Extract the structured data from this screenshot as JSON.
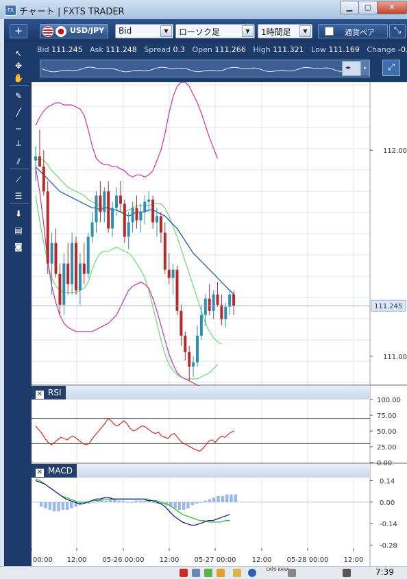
{
  "window": {
    "title": "チャート | FXTS TRADER",
    "icon_label": "FX",
    "min_glyph": "▁",
    "max_glyph": "▢",
    "close_glyph": "✕"
  },
  "toolbar": {
    "add_label": "+",
    "symbol": "USD/JPY",
    "price_type": "Bid",
    "chart_type": "ローソク足",
    "timeframe": "1時間足",
    "compare_label": "通貨ペア",
    "dropdown_glyph": "▼",
    "expand_glyph": "⤡"
  },
  "quote": {
    "bid_label": "Bid",
    "bid": "111.245",
    "ask_label": "Ask",
    "ask": "111.248",
    "spread_label": "Spread",
    "spread": "0.3",
    "open_label": "Open",
    "open": "111.266",
    "high_label": "High",
    "high": "111.321",
    "low_label": "Low",
    "low": "111.169",
    "change_label": "Change",
    "change": "-0."
  },
  "navigator": {
    "arrow_glyph": "▸",
    "thumb_glyph": "◂▸",
    "zoom_glyph": "⤢"
  },
  "left_tools": [
    {
      "name": "pointer-tool-icon",
      "glyph": "↖"
    },
    {
      "name": "crosshair-tool-icon",
      "glyph": "✥"
    },
    {
      "name": "hand-tool-icon",
      "glyph": "✋"
    },
    {
      "name": "draw-tool-icon",
      "glyph": "✎"
    },
    {
      "name": "trendline-tool-icon",
      "glyph": "╱"
    },
    {
      "name": "hline-tool-icon",
      "glyph": "─"
    },
    {
      "name": "vline-tool-icon",
      "glyph": "┴"
    },
    {
      "name": "channel-tool-icon",
      "glyph": "⫽"
    },
    {
      "name": "fan-tool-icon",
      "glyph": "⟋"
    },
    {
      "name": "fibonacci-tool-icon",
      "glyph": "☰"
    },
    {
      "name": "download-icon",
      "glyph": "⬇"
    },
    {
      "name": "list-icon",
      "glyph": "▤"
    },
    {
      "name": "camera-icon",
      "glyph": "◙"
    }
  ],
  "chart_data": [
    {
      "type": "candlestick",
      "symbol": "USD/JPY",
      "timeframe": "1時間足",
      "x_tick_labels": [
        "00:00",
        "12:00",
        "05-26 00:00",
        "12:00",
        "05-27 00:00",
        "12:00",
        "05-28 00:00",
        "12:00"
      ],
      "y_tick_labels": [
        "112.000",
        "111.000"
      ],
      "y_ticks": [
        112.0,
        111.0
      ],
      "ylim": [
        110.88,
        112.33
      ],
      "current_price_label": "111.245",
      "current_price": 111.245,
      "candles": [
        [
          111.95,
          112.02,
          111.85,
          111.97
        ],
        [
          111.97,
          112.1,
          111.92,
          111.92
        ],
        [
          111.92,
          112.0,
          111.78,
          111.8
        ],
        [
          111.8,
          111.85,
          111.4,
          111.45
        ],
        [
          111.45,
          111.6,
          111.3,
          111.55
        ],
        [
          111.55,
          111.62,
          111.38,
          111.4
        ],
        [
          111.4,
          111.45,
          111.2,
          111.25
        ],
        [
          111.25,
          111.5,
          111.2,
          111.45
        ],
        [
          111.45,
          111.55,
          111.3,
          111.35
        ],
        [
          111.35,
          111.6,
          111.3,
          111.55
        ],
        [
          111.55,
          111.58,
          111.3,
          111.32
        ],
        [
          111.32,
          111.5,
          111.25,
          111.45
        ],
        [
          111.45,
          111.55,
          111.35,
          111.4
        ],
        [
          111.4,
          111.6,
          111.38,
          111.58
        ],
        [
          111.58,
          111.7,
          111.55,
          111.65
        ],
        [
          111.65,
          111.8,
          111.6,
          111.78
        ],
        [
          111.78,
          111.85,
          111.65,
          111.7
        ],
        [
          111.7,
          111.82,
          111.65,
          111.8
        ],
        [
          111.8,
          111.85,
          111.6,
          111.62
        ],
        [
          111.62,
          111.75,
          111.58,
          111.72
        ],
        [
          111.72,
          111.82,
          111.68,
          111.78
        ],
        [
          111.78,
          111.85,
          111.7,
          111.74
        ],
        [
          111.74,
          111.76,
          111.55,
          111.58
        ],
        [
          111.58,
          111.7,
          111.52,
          111.65
        ],
        [
          111.65,
          111.75,
          111.6,
          111.72
        ],
        [
          111.72,
          111.78,
          111.62,
          111.66
        ],
        [
          111.66,
          111.74,
          111.6,
          111.7
        ],
        [
          111.7,
          111.78,
          111.64,
          111.75
        ],
        [
          111.75,
          111.8,
          111.7,
          111.76
        ],
        [
          111.76,
          111.78,
          111.62,
          111.65
        ],
        [
          111.65,
          111.72,
          111.58,
          111.68
        ],
        [
          111.68,
          111.7,
          111.55,
          111.6
        ],
        [
          111.6,
          111.65,
          111.4,
          111.42
        ],
        [
          111.42,
          111.5,
          111.35,
          111.38
        ],
        [
          111.38,
          111.45,
          111.3,
          111.42
        ],
        [
          111.42,
          111.44,
          111.2,
          111.22
        ],
        [
          111.22,
          111.25,
          111.05,
          111.1
        ],
        [
          111.1,
          111.12,
          110.98,
          111.02
        ],
        [
          111.02,
          111.05,
          110.88,
          110.95
        ],
        [
          110.95,
          111.0,
          110.9,
          110.97
        ],
        [
          110.97,
          111.15,
          110.95,
          111.1
        ],
        [
          111.1,
          111.25,
          111.08,
          111.2
        ],
        [
          111.2,
          111.3,
          111.15,
          111.28
        ],
        [
          111.28,
          111.35,
          111.2,
          111.22
        ],
        [
          111.22,
          111.32,
          111.18,
          111.3
        ],
        [
          111.3,
          111.36,
          111.24,
          111.25
        ],
        [
          111.25,
          111.3,
          111.15,
          111.18
        ],
        [
          111.18,
          111.26,
          111.14,
          111.24
        ],
        [
          111.24,
          111.32,
          111.2,
          111.3
        ],
        [
          111.3,
          111.32,
          111.2,
          111.245
        ]
      ],
      "ma_line": [
        111.92,
        111.9,
        111.88,
        111.86,
        111.84,
        111.82,
        111.8,
        111.79,
        111.78,
        111.77,
        111.76,
        111.75,
        111.74,
        111.73,
        111.72,
        111.72,
        111.71,
        111.72,
        111.72,
        111.71,
        111.71,
        111.7,
        111.69,
        111.68,
        111.69,
        111.7,
        111.7,
        111.7,
        111.71,
        111.71,
        111.7,
        111.69,
        111.68,
        111.66,
        111.64,
        111.62,
        111.59,
        111.56,
        111.53,
        111.5,
        111.48,
        111.46,
        111.44,
        111.42,
        111.4,
        111.38,
        111.36,
        111.34,
        111.32,
        111.3
      ],
      "bb_upper": [
        112.12,
        112.16,
        112.19,
        112.21,
        112.22,
        112.23,
        112.23,
        112.22,
        112.22,
        112.22,
        112.21,
        112.2,
        112.17,
        112.1,
        112.02,
        111.96,
        111.94,
        111.93,
        111.93,
        111.92,
        111.92,
        111.91,
        111.9,
        111.88,
        111.87,
        111.88,
        111.88,
        111.87,
        111.88,
        111.9,
        111.95,
        112.0,
        112.08,
        112.18,
        112.26,
        112.31,
        112.33,
        112.33,
        112.31,
        112.27,
        112.23,
        112.18,
        112.12,
        112.06,
        112.01,
        111.96
      ],
      "bb_mid": [
        111.95,
        111.96,
        111.95,
        111.93,
        111.9,
        111.88,
        111.86,
        111.84,
        111.82,
        111.81,
        111.8,
        111.79,
        111.78,
        111.76,
        111.75,
        111.74,
        111.73,
        111.72,
        111.72,
        111.71,
        111.71,
        111.7,
        111.7,
        111.71,
        111.72,
        111.73,
        111.73,
        111.73,
        111.73,
        111.74,
        111.74,
        111.74,
        111.72,
        111.68,
        111.63,
        111.58,
        111.52,
        111.46,
        111.4,
        111.34,
        111.28,
        111.22,
        111.16,
        111.12,
        111.09,
        111.07,
        111.06
      ],
      "bb_lower": [
        111.78,
        111.66,
        111.55,
        111.45,
        111.38,
        111.34,
        111.32,
        111.31,
        111.31,
        111.31,
        111.31,
        111.32,
        111.33,
        111.36,
        111.42,
        111.47,
        111.5,
        111.51,
        111.51,
        111.52,
        111.53,
        111.52,
        111.51,
        111.5,
        111.48,
        111.45,
        111.42,
        111.38,
        111.32,
        111.24,
        111.16,
        111.08,
        111.01,
        110.96,
        110.93,
        110.91,
        110.9,
        110.89,
        110.89,
        110.89,
        110.89,
        110.9,
        110.91,
        110.92,
        110.94,
        110.96
      ],
      "bb_outer_lower": [
        111.92,
        111.8,
        111.64,
        111.46,
        111.34,
        111.26,
        111.2,
        111.16,
        111.14,
        111.13,
        111.12,
        111.12,
        111.12,
        111.12,
        111.12,
        111.13,
        111.14,
        111.15,
        111.16,
        111.18,
        111.2,
        111.24,
        111.28,
        111.32,
        111.34,
        111.35,
        111.36,
        111.35,
        111.33,
        111.28,
        111.22,
        111.15,
        111.08,
        111.01,
        110.96,
        110.92,
        110.9,
        110.89,
        110.88,
        110.87,
        110.86,
        110.85,
        110.84,
        110.83,
        110.82,
        110.82
      ]
    },
    {
      "type": "line",
      "name": "RSI",
      "y_tick_labels": [
        "100.00",
        "75.00",
        "50.00",
        "25.00",
        "0.00"
      ],
      "y_ticks": [
        100,
        75,
        50,
        25,
        0
      ],
      "ylim": [
        0,
        100
      ],
      "levels": [
        70,
        30
      ],
      "values": [
        58,
        52,
        46,
        38,
        32,
        28,
        32,
        36,
        40,
        38,
        36,
        40,
        42,
        38,
        34,
        30,
        28,
        30,
        38,
        44,
        50,
        56,
        62,
        70,
        66,
        60,
        58,
        62,
        66,
        62,
        54,
        50,
        52,
        56,
        58,
        56,
        52,
        48,
        46,
        48,
        42,
        40,
        38,
        44,
        46,
        40,
        34,
        30,
        28,
        25,
        22,
        20,
        18,
        22,
        28,
        34,
        36,
        32,
        38,
        42,
        40,
        44,
        48,
        50
      ]
    },
    {
      "type": "line",
      "name": "MACD",
      "y_tick_labels": [
        "0.14",
        "0.00",
        "-0.14",
        "-0.28"
      ],
      "y_ticks": [
        0.14,
        0.0,
        -0.14,
        -0.28
      ],
      "ylim": [
        -0.3,
        0.16
      ],
      "macd": [
        0.14,
        0.13,
        0.12,
        0.1,
        0.08,
        0.06,
        0.04,
        0.02,
        0.01,
        0.0,
        -0.01,
        -0.01,
        0.0,
        0.01,
        0.02,
        0.02,
        0.03,
        0.03,
        0.02,
        0.02,
        0.02,
        0.02,
        0.02,
        0.02,
        0.02,
        0.02,
        0.01,
        0.01,
        0.0,
        -0.01,
        -0.03,
        -0.06,
        -0.09,
        -0.11,
        -0.13,
        -0.14,
        -0.15,
        -0.15,
        -0.14,
        -0.13,
        -0.12,
        -0.12,
        -0.11,
        -0.1,
        -0.09,
        -0.08
      ],
      "signal": [
        0.15,
        0.14,
        0.12,
        0.1,
        0.08,
        0.06,
        0.04,
        0.03,
        0.02,
        0.01,
        0.0,
        0.0,
        0.0,
        0.01,
        0.01,
        0.01,
        0.02,
        0.02,
        0.02,
        0.02,
        0.02,
        0.02,
        0.02,
        0.02,
        0.02,
        0.02,
        0.02,
        0.01,
        0.01,
        0.0,
        -0.01,
        -0.02,
        -0.04,
        -0.06,
        -0.08,
        -0.09,
        -0.1,
        -0.11,
        -0.12,
        -0.12,
        -0.13,
        -0.13,
        -0.13,
        -0.13,
        -0.12,
        -0.12
      ],
      "histogram": [
        -0.03,
        -0.04,
        -0.05,
        -0.06,
        -0.06,
        -0.05,
        -0.05,
        -0.04,
        -0.03,
        -0.02,
        -0.01,
        -0.01,
        0.0,
        0.01,
        0.01,
        0.01,
        0.02,
        0.02,
        0.01,
        0.01,
        0.0,
        0.0,
        0.01,
        0.01,
        0.01,
        0.01,
        0.0,
        -0.01,
        -0.01,
        -0.02,
        -0.03,
        -0.04,
        -0.05,
        -0.05,
        -0.04,
        -0.02,
        -0.01,
        0.0,
        0.01,
        0.02,
        0.03,
        0.04,
        0.04,
        0.05,
        0.05,
        0.05
      ]
    }
  ],
  "panes": {
    "rsi_label": "RSI",
    "macd_label": "MACD",
    "close_glyph": "✕"
  },
  "colors": {
    "bull": "#2e8fb3",
    "bear": "#b52a2a",
    "ma": "#1e5aa8",
    "bb_inner": "#66dd66",
    "bb_outer": "#cc2fa6",
    "rsi": "#d22a1e",
    "macd": "#12238a",
    "signal": "#2fbf2f",
    "histogram": "#9cb8e8",
    "grid": "#dce4ee"
  },
  "taskbar": {
    "caps": "CAPS KANA",
    "time": "7:39"
  }
}
